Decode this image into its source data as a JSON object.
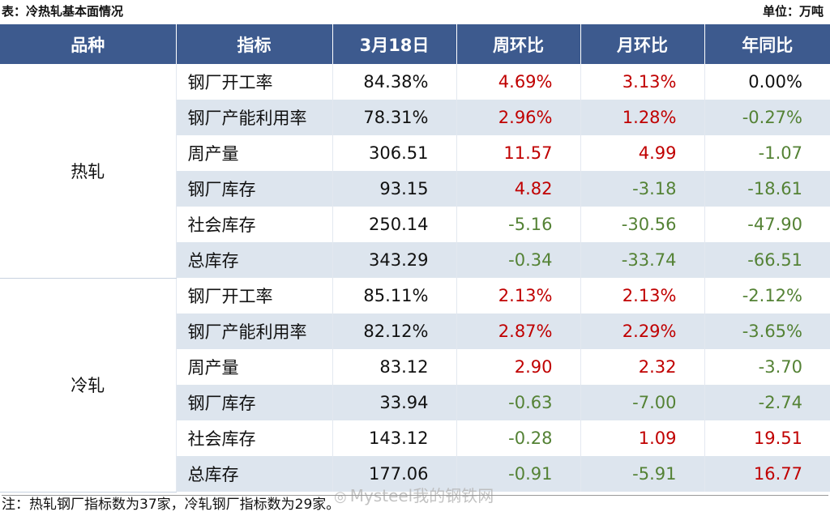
{
  "caption": {
    "title": "表：冷热轧基本面情况",
    "unit": "单位：万吨"
  },
  "headers": [
    "品种",
    "指标",
    "3月18日",
    "周环比",
    "月环比",
    "年同比"
  ],
  "groups": [
    {
      "name": "热轧",
      "rows": [
        {
          "indicator": "钢厂开工率",
          "value": "84.38%",
          "wow": "4.69%",
          "mom": "3.13%",
          "yoy": "0.00%"
        },
        {
          "indicator": "钢厂产能利用率",
          "value": "78.31%",
          "wow": "2.96%",
          "mom": "1.28%",
          "yoy": "-0.27%"
        },
        {
          "indicator": "周产量",
          "value": "306.51",
          "wow": "11.57",
          "mom": "4.99",
          "yoy": "-1.07"
        },
        {
          "indicator": "钢厂库存",
          "value": "93.15",
          "wow": "4.82",
          "mom": "-3.18",
          "yoy": "-18.61"
        },
        {
          "indicator": "社会库存",
          "value": "250.14",
          "wow": "-5.16",
          "mom": "-30.56",
          "yoy": "-47.90"
        },
        {
          "indicator": "总库存",
          "value": "343.29",
          "wow": "-0.34",
          "mom": "-33.74",
          "yoy": "-66.51"
        }
      ]
    },
    {
      "name": "冷轧",
      "rows": [
        {
          "indicator": "钢厂开工率",
          "value": "85.11%",
          "wow": "2.13%",
          "mom": "2.13%",
          "yoy": "-2.12%"
        },
        {
          "indicator": "钢厂产能利用率",
          "value": "82.12%",
          "wow": "2.87%",
          "mom": "2.29%",
          "yoy": "-3.65%"
        },
        {
          "indicator": "周产量",
          "value": "83.12",
          "wow": "2.90",
          "mom": "2.32",
          "yoy": "-3.70"
        },
        {
          "indicator": "钢厂库存",
          "value": "33.94",
          "wow": "-0.63",
          "mom": "-7.00",
          "yoy": "-2.74"
        },
        {
          "indicator": "社会库存",
          "value": "143.12",
          "wow": "-0.28",
          "mom": "1.09",
          "yoy": "19.51"
        },
        {
          "indicator": "总库存",
          "value": "177.06",
          "wow": "-0.91",
          "mom": "-5.91",
          "yoy": "16.77"
        }
      ]
    }
  ],
  "footnote": "注：热轧钢厂指标数为37家，冷轧钢厂指标数为29家。",
  "watermark": {
    "text": "Mysteel我的钢铁网",
    "icon": "weibo-logo-icon"
  },
  "colors": {
    "header_bg": "#3d5a8e",
    "band_bg": "#dde5ee",
    "positive": "#c00000",
    "negative": "#548235"
  }
}
